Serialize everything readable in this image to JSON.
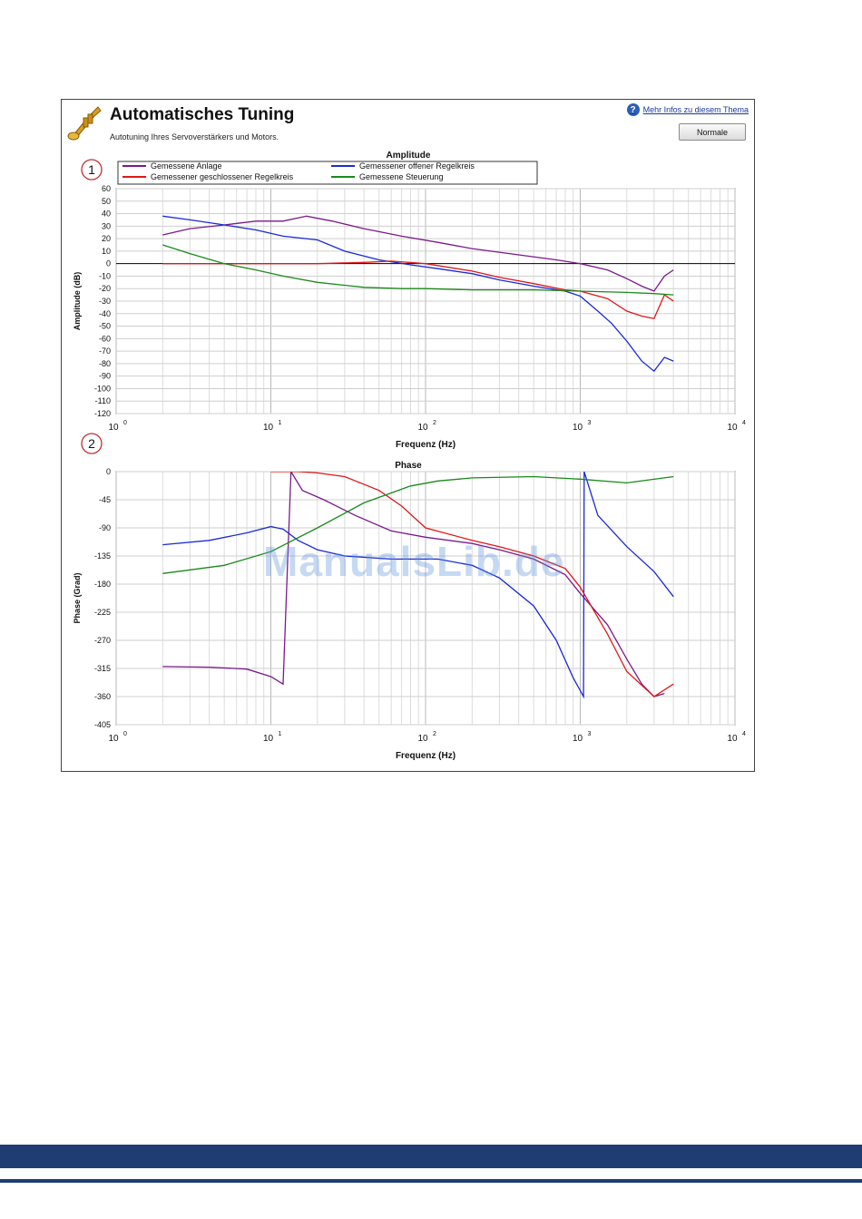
{
  "dialog": {
    "title": "Automatisches Tuning",
    "subtitle": "Autotuning Ihres Servoverstärkers und Motors.",
    "help_link": "Mehr Infos zu diesem Thema",
    "help_icon_glyph": "?",
    "normal_button": "Normale",
    "icon": "trumpet-icon"
  },
  "watermark": "ManualsLib.de",
  "colors": {
    "plant": "#7a1a8a",
    "open_loop": "#1a2ad8",
    "closed_loop": "#e01818",
    "feedforward": "#1a8a1a"
  },
  "chart_data": [
    {
      "type": "line",
      "marker": "1",
      "title": "Amplitude",
      "xlabel": "Frequenz (Hz)",
      "ylabel": "Amplitude (dB)",
      "xscale": "log",
      "xlim": [
        1,
        10000
      ],
      "ylim": [
        -120,
        60
      ],
      "xticks": [
        {
          "value": 1,
          "label": "0"
        },
        {
          "value": 10,
          "label": "1"
        },
        {
          "value": 100,
          "label": "2"
        },
        {
          "value": 1000,
          "label": "3"
        },
        {
          "value": 10000,
          "label": "4"
        }
      ],
      "yticks": [
        60,
        50,
        40,
        30,
        20,
        10,
        0,
        -10,
        -20,
        -30,
        -40,
        -50,
        -60,
        -70,
        -80,
        -90,
        -100,
        -110,
        -120
      ],
      "grid": true,
      "legend_position": "top-left",
      "series": [
        {
          "name": "Gemessene Anlage",
          "color_key": "plant",
          "x": [
            2,
            3,
            5,
            8,
            12,
            17,
            25,
            40,
            70,
            120,
            200,
            400,
            700,
            1000,
            1500,
            2000,
            2500,
            3000,
            3500,
            4000
          ],
          "y": [
            23,
            28,
            31,
            34,
            34,
            38,
            34,
            28,
            22,
            17,
            12,
            7,
            3,
            0,
            -5,
            -12,
            -18,
            -22,
            -10,
            -5
          ]
        },
        {
          "name": "Gemessener offener Regelkreis",
          "color_key": "open_loop",
          "x": [
            2,
            3,
            5,
            8,
            12,
            20,
            30,
            50,
            80,
            120,
            200,
            300,
            500,
            800,
            1000,
            1300,
            1600,
            2000,
            2500,
            3000,
            3500,
            4000
          ],
          "y": [
            38,
            35,
            31,
            27,
            22,
            19,
            10,
            3,
            -1,
            -4,
            -8,
            -13,
            -18,
            -22,
            -26,
            -38,
            -48,
            -62,
            -78,
            -86,
            -75,
            -78
          ]
        },
        {
          "name": "Gemessener geschlossener Regelkreis",
          "color_key": "closed_loop",
          "x": [
            2,
            5,
            10,
            20,
            40,
            60,
            100,
            200,
            300,
            500,
            800,
            1000,
            1500,
            2000,
            2500,
            3000,
            3500,
            4000
          ],
          "y": [
            0,
            0,
            0,
            0,
            1,
            2,
            0,
            -6,
            -11,
            -16,
            -21,
            -22,
            -28,
            -38,
            -42,
            -44,
            -25,
            -30
          ]
        },
        {
          "name": "Gemessene Steuerung",
          "color_key": "feedforward",
          "x": [
            2,
            3,
            5,
            8,
            12,
            20,
            40,
            70,
            100,
            200,
            500,
            1000,
            2000,
            3000,
            4000
          ],
          "y": [
            15,
            8,
            0,
            -5,
            -10,
            -15,
            -19,
            -20,
            -20,
            -21,
            -21,
            -22,
            -23,
            -24,
            -25
          ]
        }
      ]
    },
    {
      "type": "line",
      "marker": "2",
      "title": "Phase",
      "xlabel": "Frequenz (Hz)",
      "ylabel": "Phase (Grad)",
      "xscale": "log",
      "xlim": [
        1,
        10000
      ],
      "ylim": [
        -405,
        0
      ],
      "xticks": [
        {
          "value": 1,
          "label": "0"
        },
        {
          "value": 10,
          "label": "1"
        },
        {
          "value": 100,
          "label": "2"
        },
        {
          "value": 1000,
          "label": "3"
        },
        {
          "value": 10000,
          "label": "4"
        }
      ],
      "yticks": [
        0,
        -45,
        -90,
        -135,
        -180,
        -225,
        -270,
        -315,
        -360,
        -405
      ],
      "grid": true,
      "series": [
        {
          "color_key": "plant",
          "x": [
            2,
            4,
            7,
            10,
            12,
            13.5,
            16,
            22,
            35,
            60,
            100,
            200,
            300,
            500,
            800,
            1000,
            1500,
            2000,
            2500,
            3000,
            3500
          ],
          "y": [
            -312,
            -313,
            -316,
            -328,
            -340,
            0,
            -30,
            -45,
            -70,
            -95,
            -105,
            -115,
            -125,
            -140,
            -165,
            -195,
            -245,
            -300,
            -340,
            -360,
            -355
          ]
        },
        {
          "color_key": "open_loop",
          "x": [
            2,
            4,
            7,
            10,
            12,
            15,
            20,
            30,
            60,
            120,
            200,
            300,
            500,
            700,
            900,
            1050,
            1060,
            1300,
            2000,
            3000,
            4000
          ],
          "y": [
            -117,
            -110,
            -98,
            -88,
            -92,
            -110,
            -125,
            -135,
            -140,
            -140,
            -150,
            -170,
            -215,
            -270,
            -330,
            -360,
            0,
            -70,
            -120,
            -160,
            -200
          ]
        },
        {
          "color_key": "closed_loop",
          "x": [
            10,
            15,
            20,
            30,
            50,
            70,
            100,
            200,
            300,
            500,
            800,
            1000,
            1500,
            2000,
            3000,
            4000
          ],
          "y": [
            0,
            0,
            -2,
            -8,
            -30,
            -55,
            -90,
            -110,
            -120,
            -135,
            -155,
            -185,
            -260,
            -320,
            -360,
            -340
          ]
        },
        {
          "color_key": "feedforward",
          "x": [
            2,
            5,
            10,
            20,
            40,
            80,
            120,
            200,
            500,
            1000,
            2000,
            4000
          ],
          "y": [
            -163,
            -150,
            -128,
            -90,
            -50,
            -23,
            -15,
            -10,
            -8,
            -12,
            -18,
            -8
          ]
        }
      ]
    }
  ]
}
